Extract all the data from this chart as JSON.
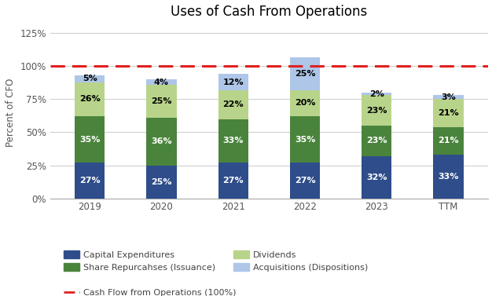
{
  "title": "Uses of Cash From Operations",
  "categories": [
    "2019",
    "2020",
    "2021",
    "2022",
    "2023",
    "TTM"
  ],
  "series": {
    "Capital Expenditures": [
      27,
      25,
      27,
      27,
      32,
      33
    ],
    "Share Repurcahses (Issuance)": [
      35,
      36,
      33,
      35,
      23,
      21
    ],
    "Dividends": [
      26,
      25,
      22,
      20,
      23,
      21
    ],
    "Acquisitions (Dispositions)": [
      5,
      4,
      12,
      25,
      2,
      3
    ]
  },
  "colors": {
    "Capital Expenditures": "#2e4d8a",
    "Share Repurcahses (Issuance)": "#4a843c",
    "Dividends": "#b8d48a",
    "Acquisitions (Dispositions)": "#aec6e8"
  },
  "ylabel": "Percent of CFO",
  "ylim": [
    0,
    130
  ],
  "yticks": [
    0,
    25,
    50,
    75,
    100,
    125
  ],
  "ytick_labels": [
    "0%",
    "25%",
    "50%",
    "75%",
    "100%",
    "125%"
  ],
  "dashed_line_y": 100,
  "dashed_line_label": "Cash Flow from Operations (100%)",
  "dashed_line_color": "#e02020",
  "background_color": "#ffffff",
  "bar_width": 0.42,
  "label_fontsize": 8,
  "title_fontsize": 12,
  "legend_fontsize": 8,
  "axis_fontsize": 8.5
}
